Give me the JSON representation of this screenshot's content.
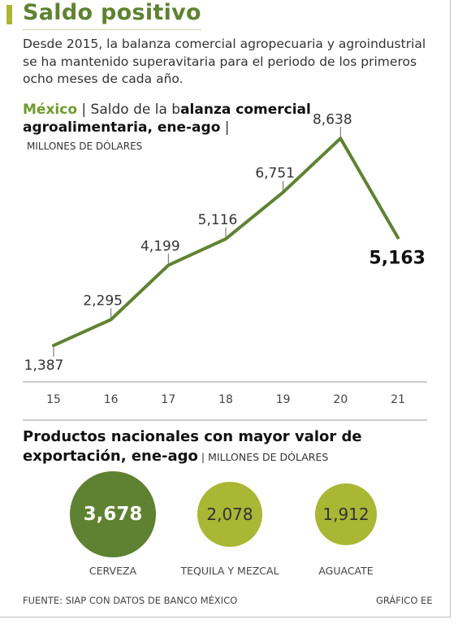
{
  "header": {
    "title": "Saldo positivo",
    "intro": "Desde 2015, la balanza comercial agropecuaria y agroindustrial se ha mantenido superavitaria para el periodo de los primeros ocho meses de cada año."
  },
  "line_section": {
    "title_country": "México",
    "title_sep": " | ",
    "title_light": "Saldo de la b",
    "title_bold": "alanza comercial agroalimentaria, ene-ago",
    "title_tail": " |",
    "units": "MILLONES DE DÓLARES"
  },
  "bubble_section": {
    "title": "Productos nacionales con mayor valor de exportación, ene-ago",
    "sep": " | ",
    "units": "MILLONES DE DÓLARES"
  },
  "footer": {
    "source": "FUENTE: SIAP CON DATOS DE BANCO MÉXICO",
    "credit": "GRÁFICO EE"
  },
  "colors": {
    "line": "#5f8232",
    "title": "#5f8232",
    "bubble_dark": "#5f8232",
    "bubble_light": "#a9b734"
  },
  "chart_data": [
    {
      "type": "line",
      "x": [
        "15",
        "16",
        "17",
        "18",
        "19",
        "20",
        "21"
      ],
      "series": [
        {
          "values": [
            1387,
            2295,
            4199,
            5116,
            6751,
            8638,
            5163
          ]
        }
      ],
      "data_labels": [
        "1,387",
        "2,295",
        "4,199",
        "5,116",
        "6,751",
        "8,638",
        "5,163"
      ],
      "ylim": [
        0,
        9500
      ],
      "ylabel": "MILLONES DE DÓLARES",
      "grid": false
    },
    {
      "type": "bubble",
      "categories": [
        "CERVEZA",
        "TEQUILA Y MEZCAL",
        "AGUACATE"
      ],
      "values": [
        3678,
        2078,
        1912
      ],
      "data_labels": [
        "3,678",
        "2,078",
        "1,912"
      ]
    }
  ]
}
